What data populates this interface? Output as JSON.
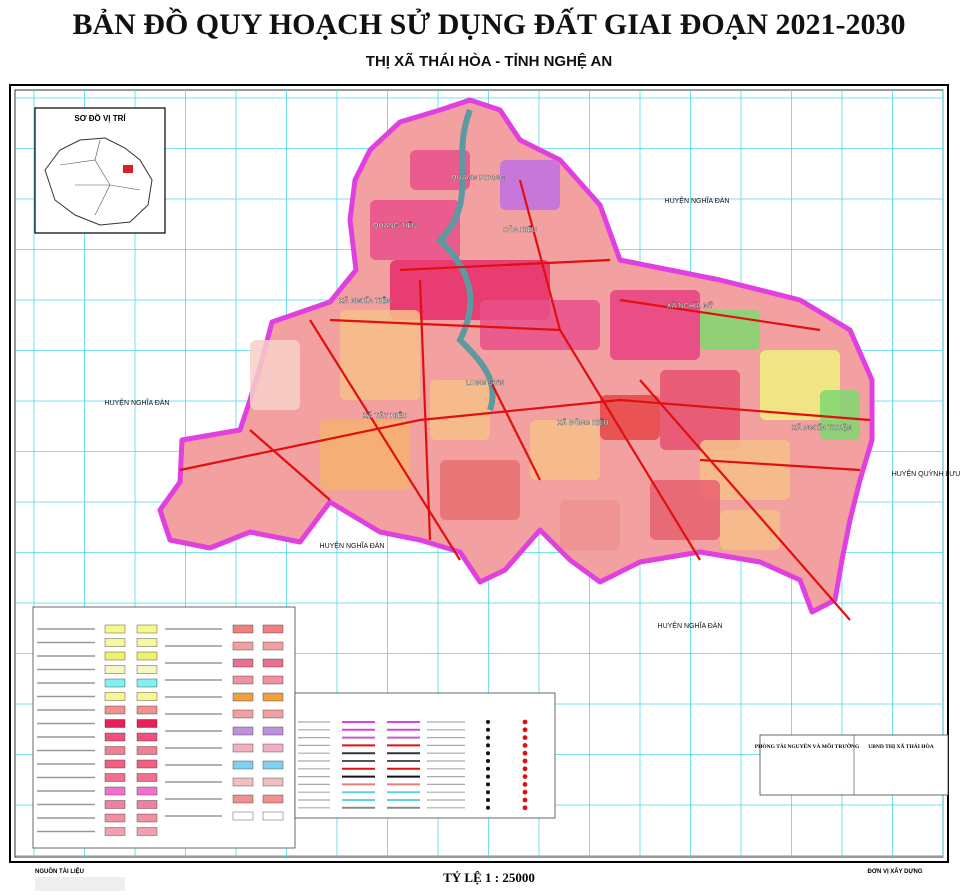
{
  "title": "BẢN ĐỒ QUY HOẠCH  SỬ DỤNG ĐẤT GIAI ĐOẠN 2021-2030",
  "subtitle": "THỊ XÃ THÁI HÒA - TỈNH NGHỆ AN",
  "inset_title": "SƠ ĐỒ VỊ TRÍ",
  "neighbors": [
    "HUYỆN NGHĨA ĐÀN",
    "HUYỆN NGHĨA ĐÀN",
    "HUYỆN NGHĨA ĐÀN",
    "HUYỆN NGHĨA ĐÀN",
    "HUYỆN QUỲNH LƯU"
  ],
  "communes": [
    "QUANG PHONG",
    "QUANG TIẾN",
    "HÒA HIẾU",
    "XÃ NGHĨA TIẾN",
    "XÃ NGHĨA MỸ",
    "LONG SƠN",
    "XÃ TÂY HIẾU",
    "XÃ ĐÔNG HIẾU",
    "XÃ NGHĨA THUẬN"
  ],
  "scale": "TỶ LỆ 1 : 25000",
  "source_title": "NGUỒN TÀI LIỆU",
  "builder_title": "ĐƠN VỊ XÂY DỰNG",
  "signatures": [
    "PHÒNG TÀI NGUYÊN VÀ MÔI TRƯỜNG",
    "UBND THỊ XÃ THÁI HÒA"
  ]
}
